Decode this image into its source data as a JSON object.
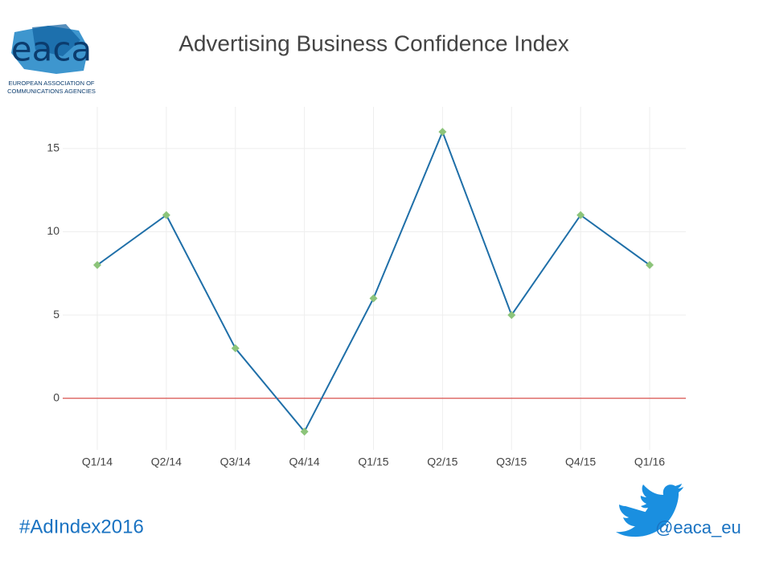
{
  "logo": {
    "name": "eaca",
    "lines": [
      "EUROPEAN ASSOCIATION OF",
      "COMMUNICATIONS AGENCIES"
    ]
  },
  "footer": {
    "hashtag": "#AdIndex2016",
    "twitter": "@eaca_eu"
  },
  "chart_data": {
    "type": "line",
    "title": "Advertising Business Confidence Index",
    "categories": [
      "Q1/14",
      "Q2/14",
      "Q3/14",
      "Q4/14",
      "Q1/15",
      "Q2/15",
      "Q3/15",
      "Q4/15",
      "Q1/16"
    ],
    "series": [
      {
        "color": "#1f6fa8",
        "marker_color": "#8cc47a",
        "values": [
          8,
          11,
          3,
          -2,
          6,
          16,
          5,
          11,
          8
        ]
      }
    ],
    "ylim": [
      -3.1,
      17.5
    ],
    "yticks": [
      0,
      5,
      10,
      15
    ],
    "grid": true,
    "zero_line_color": "#d9534f"
  }
}
